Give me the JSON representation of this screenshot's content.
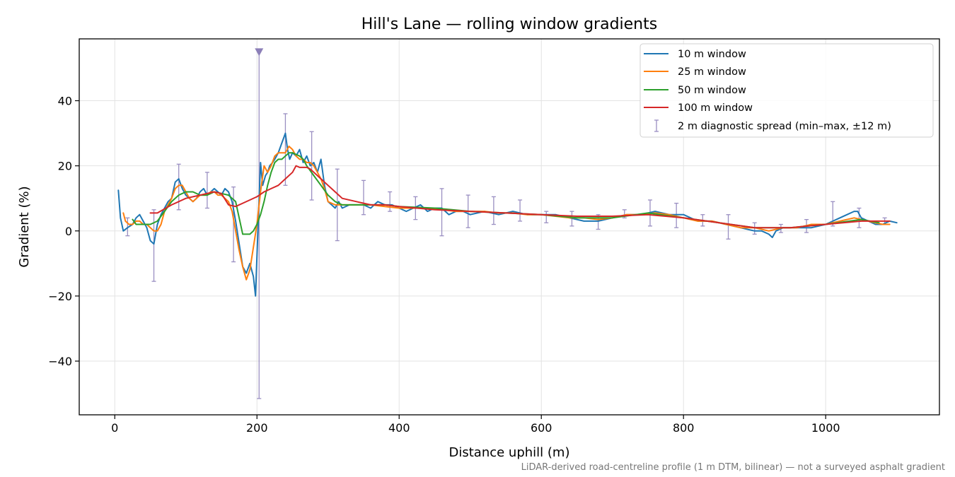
{
  "chart_data": {
    "type": "line",
    "title": "Hill's Lane — rolling window gradients",
    "xlabel": "Distance uphill (m)",
    "ylabel": "Gradient (%)",
    "xlim": [
      -50,
      1160
    ],
    "ylim": [
      -56.5,
      59
    ],
    "xticks": [
      0,
      200,
      400,
      600,
      800,
      1000
    ],
    "xtick_labels": [
      "0",
      "200",
      "400",
      "600",
      "800",
      "1000"
    ],
    "yticks": [
      -40,
      -20,
      0,
      20,
      40
    ],
    "ytick_labels": [
      "−40",
      "−20",
      "0",
      "20",
      "40"
    ],
    "grid": true,
    "legend_position": "top-right",
    "footnote": "LiDAR-derived road-centreline profile (1 m DTM, bilinear) — not a surveyed asphalt gradient",
    "series": [
      {
        "name": "10 m window",
        "color": "#1f77b4",
        "x": [
          5,
          8,
          12,
          18,
          25,
          30,
          35,
          40,
          45,
          50,
          55,
          60,
          65,
          70,
          75,
          80,
          85,
          90,
          95,
          100,
          105,
          110,
          115,
          120,
          125,
          130,
          135,
          140,
          145,
          150,
          155,
          160,
          165,
          170,
          175,
          180,
          185,
          190,
          195,
          198,
          200,
          203,
          205,
          208,
          212,
          215,
          218,
          222,
          225,
          230,
          235,
          240,
          243,
          246,
          250,
          255,
          260,
          265,
          270,
          275,
          280,
          285,
          290,
          295,
          300,
          305,
          310,
          315,
          320,
          330,
          340,
          350,
          360,
          370,
          380,
          390,
          400,
          410,
          420,
          430,
          440,
          450,
          460,
          470,
          480,
          490,
          500,
          520,
          540,
          560,
          580,
          600,
          620,
          640,
          660,
          680,
          700,
          720,
          740,
          760,
          780,
          800,
          820,
          840,
          860,
          880,
          900,
          910,
          920,
          925,
          930,
          940,
          960,
          980,
          1000,
          1010,
          1020,
          1030,
          1040,
          1045,
          1050,
          1060,
          1070,
          1080,
          1090,
          1100
        ],
        "values": [
          12.5,
          4,
          0,
          1,
          2,
          4,
          5,
          3,
          1,
          -3,
          -4,
          2,
          5,
          7,
          9,
          10,
          15,
          16,
          13,
          11,
          10,
          9,
          10,
          12,
          13,
          11,
          12,
          13,
          12,
          11,
          13,
          12,
          9,
          3,
          -4,
          -11,
          -13,
          -10,
          -14,
          -20,
          -8,
          10,
          21,
          14,
          17,
          18,
          20,
          21,
          22,
          24,
          27,
          30,
          25,
          22,
          24,
          23,
          25,
          21,
          23,
          20,
          21,
          18,
          22,
          14,
          9,
          8,
          7,
          9,
          7,
          8,
          8,
          8,
          7,
          9,
          8,
          8,
          7,
          6,
          7,
          8,
          6,
          7,
          7,
          5,
          6,
          6,
          5,
          6,
          5,
          6,
          5,
          5,
          5,
          4,
          3,
          3,
          4,
          5,
          5,
          6,
          5,
          5,
          3,
          3,
          2,
          1,
          0,
          0,
          -1,
          -2,
          0,
          1,
          1,
          1,
          2,
          3,
          4,
          5,
          6,
          6,
          4,
          3,
          2,
          2,
          3,
          2.5
        ]
      },
      {
        "name": "25 m window",
        "color": "#ff7f0e",
        "x": [
          12,
          15,
          20,
          25,
          30,
          35,
          40,
          45,
          50,
          55,
          60,
          65,
          70,
          75,
          80,
          85,
          90,
          95,
          100,
          105,
          110,
          115,
          120,
          125,
          130,
          135,
          140,
          145,
          150,
          155,
          160,
          165,
          170,
          175,
          180,
          185,
          190,
          195,
          200,
          205,
          210,
          215,
          220,
          225,
          230,
          235,
          240,
          245,
          250,
          255,
          260,
          265,
          270,
          275,
          280,
          285,
          290,
          295,
          300,
          310,
          320,
          330,
          340,
          350,
          360,
          380,
          400,
          420,
          440,
          460,
          480,
          500,
          520,
          540,
          560,
          580,
          600,
          620,
          640,
          660,
          680,
          700,
          720,
          740,
          760,
          780,
          800,
          820,
          840,
          860,
          880,
          900,
          920,
          940,
          960,
          980,
          1000,
          1020,
          1040,
          1060,
          1080,
          1090
        ],
        "values": [
          5.5,
          3,
          2,
          2,
          3,
          3,
          2,
          2,
          1,
          0,
          0,
          2,
          6,
          8,
          10,
          13,
          14,
          14,
          12,
          10,
          9,
          10,
          11,
          11,
          11,
          12,
          12,
          11,
          11,
          10,
          9,
          6,
          0,
          -6,
          -11,
          -15,
          -12,
          -5,
          2,
          12,
          20,
          18,
          20,
          23,
          24,
          24,
          24,
          26,
          25,
          23,
          22,
          22,
          21,
          21,
          20,
          18,
          16,
          13,
          9,
          8,
          8,
          8,
          8,
          8,
          8,
          7.5,
          7,
          7,
          7,
          6.5,
          6,
          6,
          6,
          5.5,
          5.5,
          5,
          5,
          4.5,
          4,
          4,
          3.5,
          4,
          5,
          5,
          5.5,
          5,
          4,
          3,
          3,
          2,
          1,
          1,
          0,
          1,
          1,
          2,
          2,
          3,
          4,
          3,
          2,
          2
        ]
      },
      {
        "name": "50 m window",
        "color": "#2ca02c",
        "x": [
          25,
          30,
          40,
          50,
          60,
          70,
          80,
          90,
          100,
          110,
          120,
          130,
          140,
          150,
          160,
          170,
          175,
          180,
          185,
          190,
          195,
          200,
          205,
          210,
          215,
          220,
          225,
          230,
          235,
          240,
          245,
          250,
          255,
          260,
          265,
          270,
          280,
          290,
          300,
          310,
          320,
          340,
          360,
          380,
          400,
          450,
          500,
          550,
          600,
          650,
          700,
          750,
          800,
          850,
          900,
          950,
          1000,
          1050,
          1075
        ],
        "values": [
          3.5,
          2,
          2,
          2,
          3,
          6,
          9,
          11,
          12,
          12,
          11,
          11,
          12,
          11.5,
          11,
          9,
          4,
          -1,
          -1,
          -1,
          0,
          2,
          5,
          9,
          14,
          18,
          21,
          22,
          22,
          23,
          24,
          24,
          23.5,
          23,
          22,
          20,
          17,
          14,
          11,
          9,
          8,
          8,
          8,
          8,
          7.5,
          7,
          6,
          5.5,
          5,
          4,
          4,
          5.5,
          4,
          2.5,
          1,
          1,
          2,
          3.5,
          2.5
        ]
      },
      {
        "name": "100 m window",
        "color": "#d62728",
        "x": [
          50,
          60,
          80,
          100,
          120,
          140,
          150,
          160,
          170,
          180,
          190,
          200,
          210,
          220,
          230,
          240,
          250,
          255,
          260,
          265,
          270,
          275,
          280,
          290,
          300,
          310,
          320,
          340,
          360,
          380,
          400,
          450,
          500,
          550,
          600,
          650,
          700,
          750,
          800,
          850,
          900,
          950,
          1000,
          1050,
          1090
        ],
        "values": [
          5.5,
          5.5,
          8,
          10,
          11,
          12,
          11.5,
          8,
          7.5,
          8.5,
          9.5,
          10.5,
          12,
          13,
          14,
          16,
          18,
          20,
          19.5,
          19.5,
          19.5,
          19,
          18,
          16,
          14,
          12,
          10,
          9,
          8,
          8,
          7.5,
          6.5,
          6,
          5.5,
          5,
          4.5,
          4.5,
          5,
          4,
          2.5,
          1,
          1,
          2,
          3,
          3
        ]
      }
    ],
    "error_bars": {
      "name": "2 m diagnostic spread (min–max, ±12 m)",
      "color": "#9a8fc2",
      "x": [
        18,
        55,
        90,
        130,
        167,
        203,
        240,
        277,
        313,
        350,
        387,
        423,
        460,
        497,
        533,
        570,
        607,
        643,
        680,
        717,
        753,
        790,
        827,
        863,
        900,
        937,
        973,
        1010,
        1047,
        1083
      ],
      "low": [
        -1.5,
        -15.5,
        6.5,
        7,
        -9.5,
        -51.5,
        14,
        9.5,
        -3,
        5,
        6,
        3.5,
        -1.5,
        1,
        2,
        3,
        2.5,
        1.5,
        0.5,
        4,
        1.5,
        1,
        1.5,
        -2.5,
        -1,
        -0.5,
        -0.5,
        1.5,
        1,
        2
      ],
      "high": [
        4,
        6.5,
        20.5,
        18,
        13.5,
        55,
        36,
        30.5,
        19,
        15.5,
        12,
        10.5,
        13,
        11,
        10.5,
        9.5,
        6,
        6,
        5,
        6.5,
        9.5,
        8.5,
        5,
        5,
        2.5,
        2,
        3.5,
        9,
        7,
        4
      ],
      "clipped_marker": {
        "x": 203,
        "y": 55
      }
    }
  }
}
